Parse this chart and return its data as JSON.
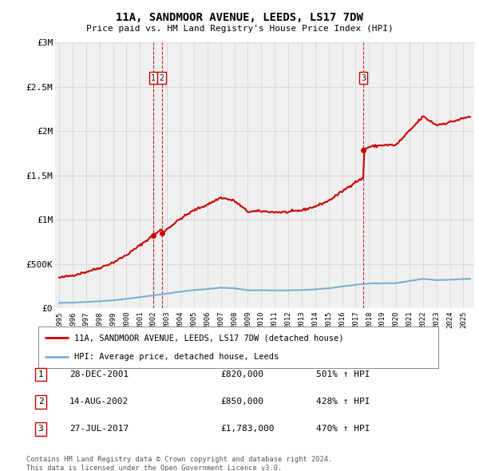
{
  "title": "11A, SANDMOOR AVENUE, LEEDS, LS17 7DW",
  "subtitle": "Price paid vs. HM Land Registry's House Price Index (HPI)",
  "xlim": [
    1994.7,
    2025.8
  ],
  "ylim": [
    0,
    3000000
  ],
  "yticks": [
    0,
    500000,
    1000000,
    1500000,
    2000000,
    2500000,
    3000000
  ],
  "ytick_labels": [
    "£0",
    "£500K",
    "£1M",
    "£1.5M",
    "£2M",
    "£2.5M",
    "£3M"
  ],
  "transactions": [
    {
      "id": 1,
      "date": "28-DEC-2001",
      "year": 2001.99,
      "price": 820000,
      "pct": "501%"
    },
    {
      "id": 2,
      "date": "14-AUG-2002",
      "year": 2002.62,
      "price": 850000,
      "pct": "428%"
    },
    {
      "id": 3,
      "date": "27-JUL-2017",
      "year": 2017.57,
      "price": 1783000,
      "pct": "470%"
    }
  ],
  "legend_entries": [
    {
      "label": "11A, SANDMOOR AVENUE, LEEDS, LS17 7DW (detached house)",
      "color": "#cc0000",
      "lw": 1.5
    },
    {
      "label": "HPI: Average price, detached house, Leeds",
      "color": "#7bafd4",
      "lw": 1.5
    }
  ],
  "footer_lines": [
    "Contains HM Land Registry data © Crown copyright and database right 2024.",
    "This data is licensed under the Open Government Licence v3.0."
  ],
  "background_color": "#ffffff",
  "plot_bg_color": "#f0f0f0",
  "grid_color": "#d0d0d0",
  "sale1_year": 2001.99,
  "sale1_price": 820000,
  "sale2_year": 2002.62,
  "sale2_price": 850000,
  "sale3_year": 2017.57,
  "sale3_price": 1783000,
  "hpi_control_x": [
    1995,
    1996,
    1997,
    1998,
    1999,
    2000,
    2001,
    2002,
    2003,
    2004,
    2005,
    2006,
    2007,
    2008,
    2009,
    2010,
    2011,
    2012,
    2013,
    2014,
    2015,
    2016,
    2017,
    2018,
    2019,
    2020,
    2021,
    2022,
    2023,
    2024,
    2025.5
  ],
  "hpi_control_y": [
    62000,
    67000,
    74000,
    82000,
    93000,
    108000,
    128000,
    148000,
    168000,
    190000,
    208000,
    220000,
    235000,
    228000,
    205000,
    206000,
    204000,
    204000,
    208000,
    216000,
    228000,
    248000,
    268000,
    282000,
    285000,
    285000,
    310000,
    335000,
    320000,
    325000,
    335000
  ]
}
